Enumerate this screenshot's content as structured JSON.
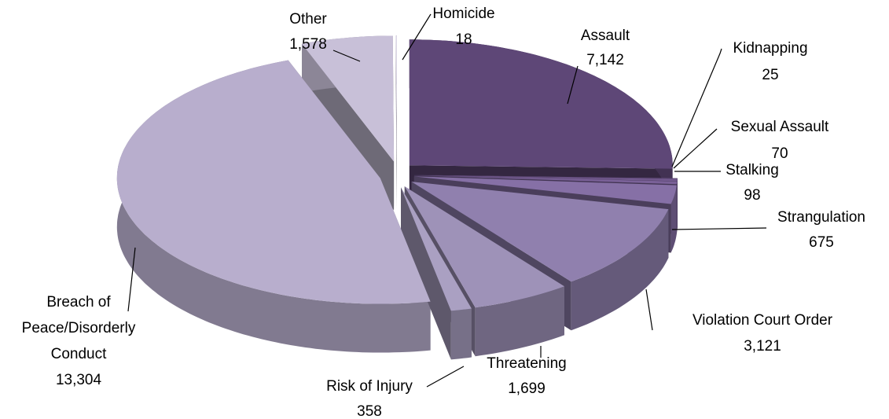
{
  "chart_data": {
    "type": "pie",
    "categories": [
      "Assault",
      "Kidnapping",
      "Sexual Assault",
      "Stalking",
      "Strangulation",
      "Violation Court Order",
      "Threatening",
      "Risk of Injury",
      "Breach of\nPeace/Disorderly\nConduct",
      "Other",
      "Homicide"
    ],
    "values": [
      7142,
      25,
      70,
      98,
      675,
      3121,
      1699,
      358,
      13304,
      1578,
      18
    ],
    "value_labels": [
      "7,142",
      "25",
      "70",
      "98",
      "675",
      "3,121",
      "1,699",
      "358",
      "13,304",
      "1,578",
      "18"
    ],
    "colors": [
      "#5e4777",
      "#6a5285",
      "#735a8f",
      "#7a6198",
      "#8670a6",
      "#9080ae",
      "#9e92b8",
      "#aaa0c2",
      "#b8aecd",
      "#c8c0d8",
      "#ddd8e8"
    ]
  }
}
